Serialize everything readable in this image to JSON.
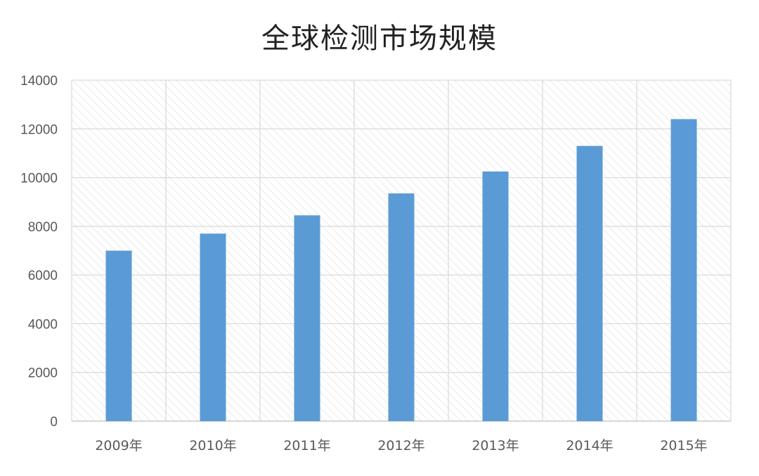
{
  "chart_data": {
    "type": "bar",
    "title": "全球检测市场规模",
    "categories": [
      "2009年",
      "2010年",
      "2011年",
      "2012年",
      "2013年",
      "2014年",
      "2015年"
    ],
    "values": [
      7000,
      7700,
      8450,
      9350,
      10250,
      11300,
      12400
    ],
    "ylim": [
      0,
      14000
    ],
    "yticks": [
      0,
      2000,
      4000,
      6000,
      8000,
      10000,
      12000,
      14000
    ],
    "grid": true,
    "legend": "none",
    "colors": {
      "bar": "#5B9BD5",
      "grid": "#D9D9D9",
      "text": "#595959"
    }
  }
}
